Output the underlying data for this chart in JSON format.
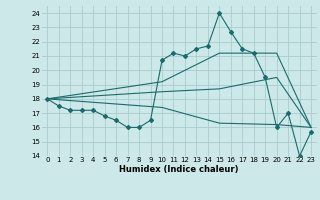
{
  "xlabel": "Humidex (Indice chaleur)",
  "bg_color": "#cce8e8",
  "grid_color": "#aacccc",
  "line_color": "#1a6b6b",
  "xlim": [
    -0.5,
    23.5
  ],
  "ylim": [
    14,
    24.5
  ],
  "yticks": [
    14,
    15,
    16,
    17,
    18,
    19,
    20,
    21,
    22,
    23,
    24
  ],
  "xticks": [
    0,
    1,
    2,
    3,
    4,
    5,
    6,
    7,
    8,
    9,
    10,
    11,
    12,
    13,
    14,
    15,
    16,
    17,
    18,
    19,
    20,
    21,
    22,
    23
  ],
  "line1_x": [
    0,
    1,
    2,
    3,
    4,
    5,
    6,
    7,
    8,
    9,
    10,
    11,
    12,
    13,
    14,
    15,
    16,
    17,
    18,
    19,
    20,
    21,
    22,
    23
  ],
  "line1_y": [
    18.0,
    17.5,
    17.2,
    17.2,
    17.2,
    16.8,
    16.5,
    16.0,
    16.0,
    16.5,
    20.7,
    21.2,
    21.0,
    21.5,
    21.7,
    24.0,
    22.7,
    21.5,
    21.2,
    19.5,
    16.0,
    17.0,
    14.0,
    15.7
  ],
  "line2_x": [
    0,
    10,
    15,
    20,
    23
  ],
  "line2_y": [
    18.0,
    19.2,
    21.2,
    21.2,
    16.0
  ],
  "line3_x": [
    0,
    10,
    15,
    20,
    23
  ],
  "line3_y": [
    18.0,
    18.5,
    18.7,
    19.5,
    16.0
  ],
  "line4_x": [
    0,
    10,
    15,
    20,
    23
  ],
  "line4_y": [
    18.0,
    17.4,
    16.3,
    16.2,
    16.0
  ]
}
